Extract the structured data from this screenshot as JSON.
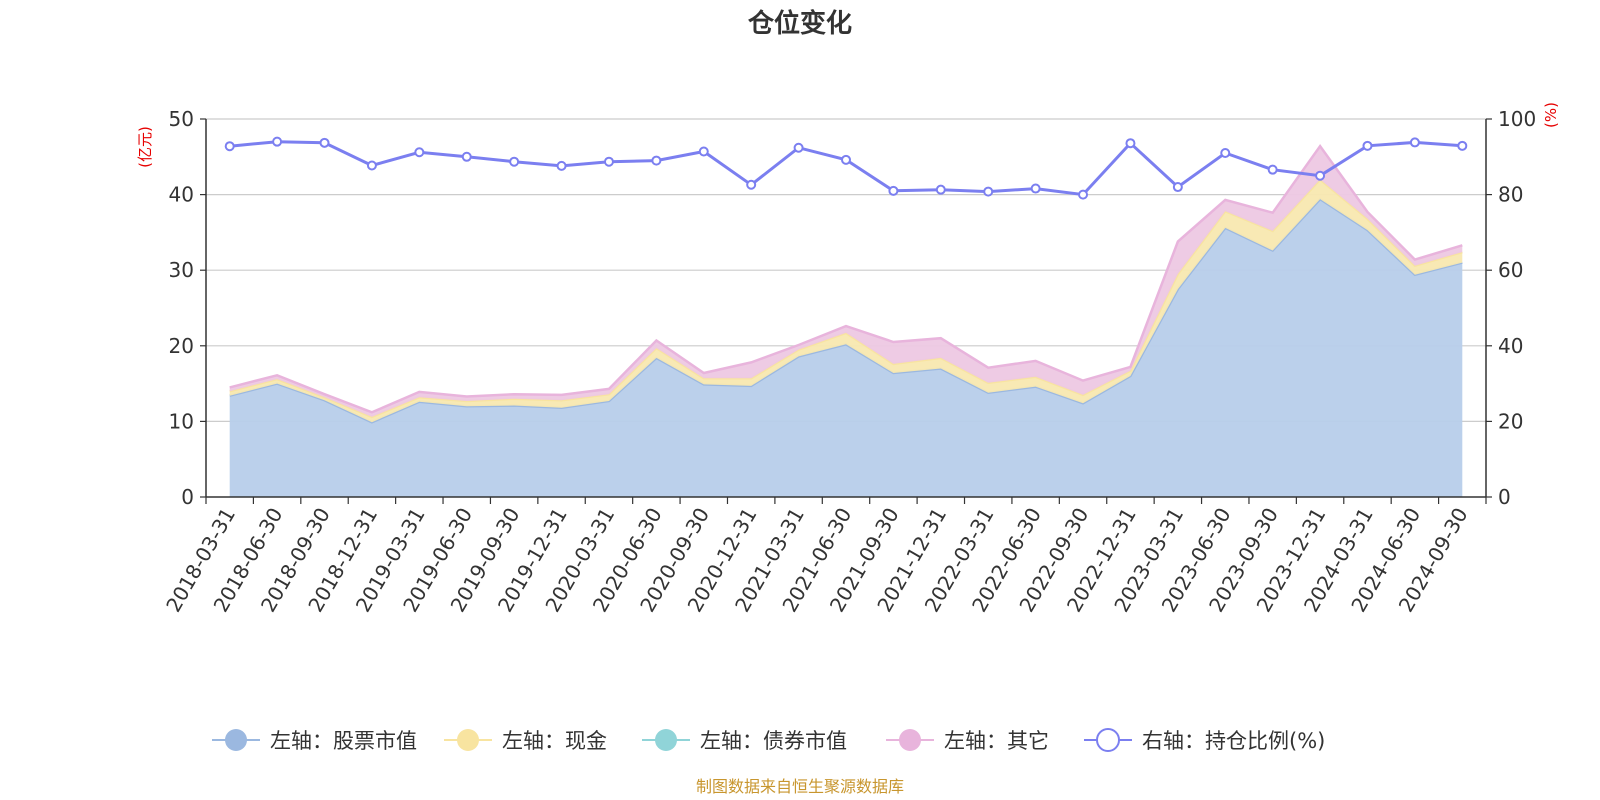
{
  "chart_data": {
    "type": "area",
    "title": "仓位变化",
    "left_unit": "(亿元)",
    "right_unit": "(%)",
    "footer": "制图数据来自恒生聚源数据库",
    "categories": [
      "2018-03-31",
      "2018-06-30",
      "2018-09-30",
      "2018-12-31",
      "2019-03-31",
      "2019-06-30",
      "2019-09-30",
      "2019-12-31",
      "2020-03-31",
      "2020-06-30",
      "2020-09-30",
      "2020-12-31",
      "2021-03-31",
      "2021-06-30",
      "2021-09-30",
      "2021-12-31",
      "2022-03-31",
      "2022-06-30",
      "2022-09-30",
      "2022-12-31",
      "2023-03-31",
      "2023-06-30",
      "2023-09-30",
      "2023-12-31",
      "2024-03-31",
      "2024-06-30",
      "2024-09-30"
    ],
    "y_left": {
      "min": 0,
      "max": 50,
      "ticks": [
        0,
        10,
        20,
        30,
        40,
        50
      ]
    },
    "y_right": {
      "min": 0,
      "max": 100,
      "ticks": [
        0,
        20,
        40,
        60,
        80,
        100
      ]
    },
    "grid": true,
    "legend_position": "bottom",
    "stack_series": [
      {
        "name": "左轴：股票市值",
        "color": "#9bb8e0",
        "fill": "#b7cdea",
        "values": [
          13.4,
          15.0,
          12.8,
          9.9,
          12.6,
          12.0,
          12.1,
          11.8,
          12.7,
          18.4,
          14.9,
          14.7,
          18.6,
          20.2,
          16.4,
          17.0,
          13.8,
          14.6,
          12.4,
          16.0,
          27.5,
          35.6,
          32.6,
          39.4,
          35.3,
          29.4,
          31.0
        ]
      },
      {
        "name": "左轴：现金",
        "color": "#f8e4a0",
        "fill": "#f8e8b0",
        "values": [
          0.6,
          0.6,
          0.4,
          0.7,
          0.6,
          0.7,
          0.9,
          1.0,
          0.9,
          1.3,
          0.8,
          1.0,
          0.9,
          1.5,
          1.2,
          1.4,
          1.3,
          1.3,
          1.1,
          0.7,
          2.0,
          2.2,
          2.6,
          2.6,
          1.5,
          1.2,
          1.4
        ]
      },
      {
        "name": "左轴：债券市值",
        "color": "#90d4d8",
        "fill": "#c4e8ea",
        "values": [
          0,
          0,
          0,
          0,
          0,
          0,
          0,
          0,
          0,
          0,
          0,
          0,
          0,
          0,
          0,
          0,
          0,
          0,
          0,
          0,
          0,
          0,
          0,
          0,
          0,
          0,
          0
        ]
      },
      {
        "name": "左轴：其它",
        "color": "#e8b4dc",
        "fill": "#edc8e3",
        "values": [
          0.5,
          0.5,
          0.4,
          0.6,
          0.7,
          0.6,
          0.6,
          0.7,
          0.7,
          1.0,
          0.7,
          2.1,
          0.6,
          0.9,
          2.9,
          2.6,
          2.0,
          2.1,
          1.9,
          0.5,
          4.3,
          1.5,
          2.4,
          4.4,
          0.9,
          0.8,
          0.9
        ]
      }
    ],
    "line_series": {
      "name": "右轴：持仓比例(%)",
      "color": "#7b7ff0",
      "values": [
        92.8,
        94.0,
        93.7,
        87.7,
        91.2,
        90.0,
        88.7,
        87.6,
        88.7,
        89.0,
        91.4,
        82.6,
        92.4,
        89.2,
        81.0,
        81.3,
        80.8,
        81.6,
        80.0,
        93.6,
        82.0,
        91.0,
        86.6,
        85.0,
        92.9,
        93.8,
        92.9
      ]
    }
  }
}
